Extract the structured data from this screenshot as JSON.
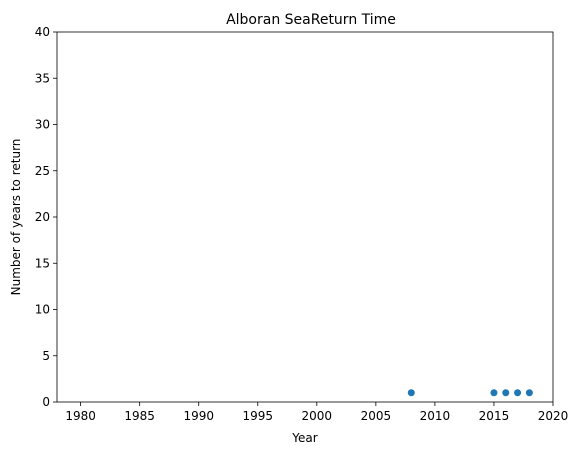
{
  "chart_data": {
    "type": "scatter",
    "title": "Alboran SeaReturn Time",
    "xlabel": "Year",
    "ylabel": "Number of years to return",
    "xlim": [
      1978,
      2020
    ],
    "ylim": [
      0,
      40
    ],
    "xticks": [
      1980,
      1985,
      1990,
      1995,
      2000,
      2005,
      2010,
      2015,
      2020
    ],
    "yticks": [
      0,
      5,
      10,
      15,
      20,
      25,
      30,
      35,
      40
    ],
    "grid": false,
    "series": [
      {
        "color": "#1f77b4",
        "points": [
          {
            "x": 2008,
            "y": 1
          },
          {
            "x": 2015,
            "y": 1
          },
          {
            "x": 2016,
            "y": 1
          },
          {
            "x": 2017,
            "y": 1
          },
          {
            "x": 2018,
            "y": 1
          }
        ]
      }
    ]
  }
}
